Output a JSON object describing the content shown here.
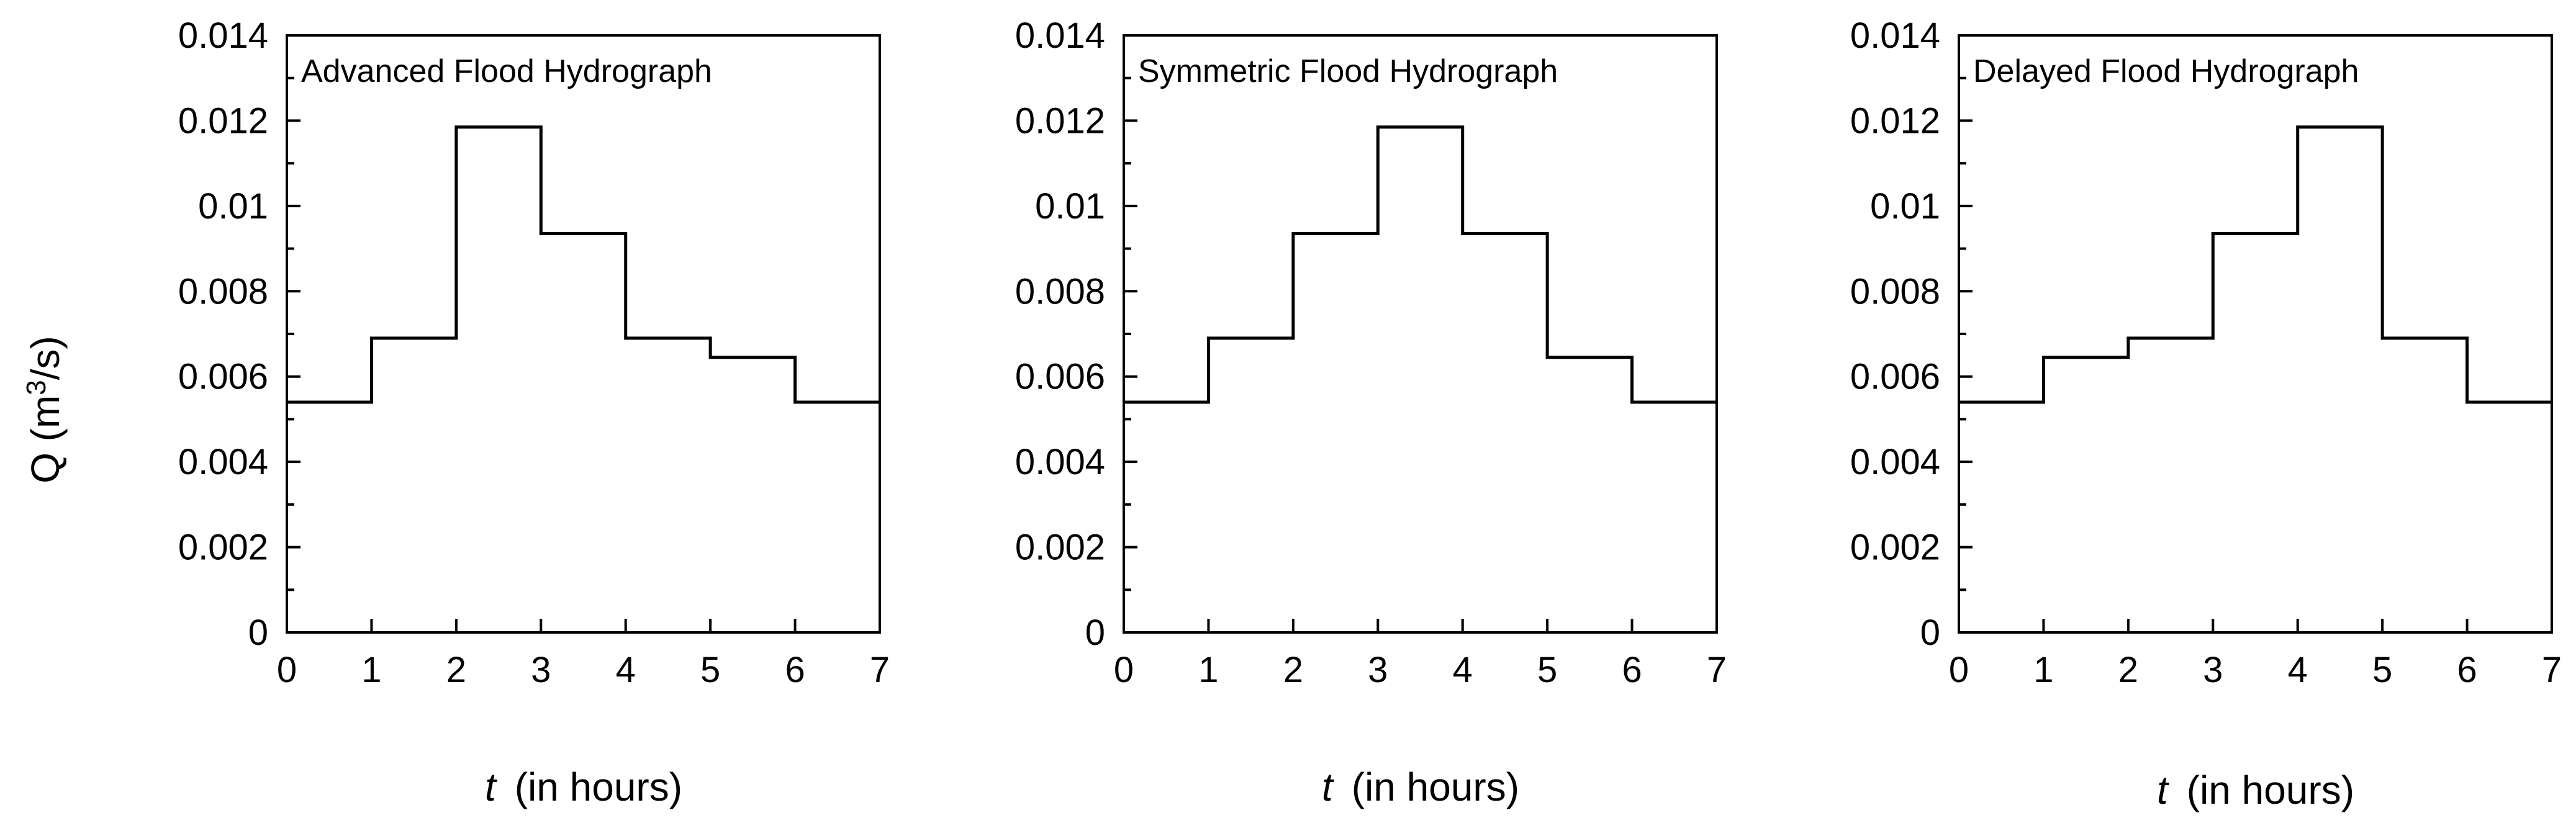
{
  "chart_data": [
    {
      "type": "line",
      "step": "post",
      "title": "Advanced Flood Hydrograph",
      "xlabel_var": "t",
      "xlabel_rest": "(in hours)",
      "ylabel": "",
      "ylabel_pre": "Q (m",
      "ylabel_sup": "3",
      "ylabel_post": "/s)",
      "xlim": [
        0,
        7
      ],
      "ylim": [
        0,
        0.014
      ],
      "xticks": [
        "0",
        "1",
        "2",
        "3",
        "4",
        "5",
        "6",
        "7"
      ],
      "yticks": [
        "0",
        "0.002",
        "0.004",
        "0.006",
        "0.008",
        "0.01",
        "0.012",
        "0.014"
      ],
      "grid": false,
      "series": [
        {
          "x": [
            0,
            1,
            2,
            3,
            4,
            5,
            6,
            7
          ],
          "y": [
            0.0054,
            0.0069,
            0.01185,
            0.00935,
            0.0069,
            0.00645,
            0.0054,
            0.0054
          ]
        }
      ]
    },
    {
      "type": "line",
      "step": "post",
      "title": "Symmetric Flood Hydrograph",
      "xlabel_var": "t",
      "xlabel_rest": "(in hours)",
      "ylabel": "",
      "xlim": [
        0,
        7
      ],
      "ylim": [
        0,
        0.014
      ],
      "xticks": [
        "0",
        "1",
        "2",
        "3",
        "4",
        "5",
        "6",
        "7"
      ],
      "yticks": [
        "0",
        "0.002",
        "0.004",
        "0.006",
        "0.008",
        "0.01",
        "0.012",
        "0.014"
      ],
      "grid": false,
      "series": [
        {
          "x": [
            0,
            1,
            2,
            3,
            4,
            5,
            6,
            7
          ],
          "y": [
            0.0054,
            0.0069,
            0.00935,
            0.01185,
            0.00935,
            0.00645,
            0.0054,
            0.0054
          ]
        }
      ]
    },
    {
      "type": "line",
      "step": "post",
      "title": "Delayed Flood Hydrograph",
      "xlabel_var": "t",
      "xlabel_rest": "(in hours)",
      "ylabel": "",
      "xlim": [
        0,
        7
      ],
      "ylim": [
        0,
        0.014
      ],
      "xticks": [
        "0",
        "1",
        "2",
        "3",
        "4",
        "5",
        "6",
        "7"
      ],
      "yticks": [
        "0",
        "0.002",
        "0.004",
        "0.006",
        "0.008",
        "0.01",
        "0.012",
        "0.014"
      ],
      "grid": false,
      "series": [
        {
          "x": [
            0,
            1,
            2,
            3,
            4,
            5,
            6,
            7
          ],
          "y": [
            0.0054,
            0.00645,
            0.0069,
            0.00935,
            0.01185,
            0.0069,
            0.0054,
            0.0054
          ]
        }
      ]
    }
  ]
}
